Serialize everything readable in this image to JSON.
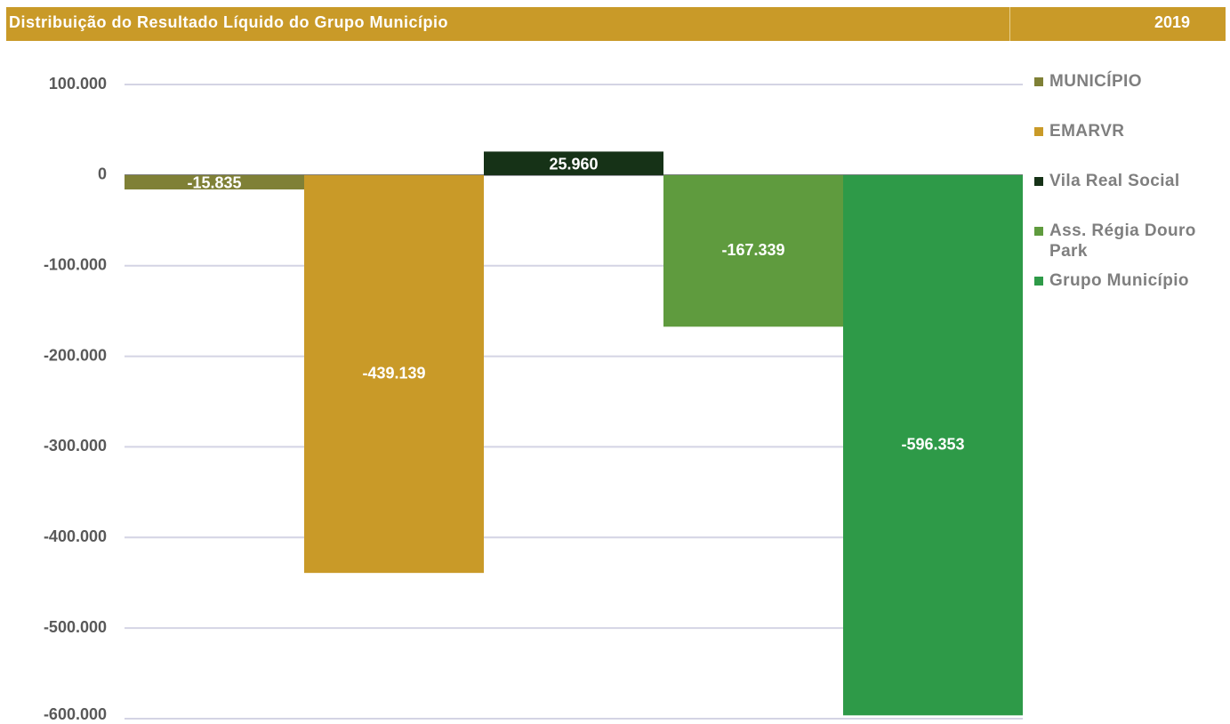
{
  "chart_data": {
    "type": "bar",
    "title": "Distribuição do Resultado Líquido do Grupo Município",
    "period": "2019",
    "series": [
      {
        "name": "MUNICÍPIO",
        "color": "#7f8036",
        "values": [
          -15835
        ],
        "value_labels": [
          "-15.835"
        ]
      },
      {
        "name": "EMARVR",
        "color": "#c99a28",
        "values": [
          -439139
        ],
        "value_labels": [
          "-439.139"
        ]
      },
      {
        "name": "Vila Real Social",
        "color": "#163217",
        "values": [
          25960
        ],
        "value_labels": [
          "25.960"
        ]
      },
      {
        "name": "Ass. Régia Douro Park",
        "color": "#5f9b3e",
        "values": [
          -167339
        ],
        "value_labels": [
          "-167.339"
        ]
      },
      {
        "name": "Grupo Município",
        "color": "#2e9a48",
        "values": [
          -596353
        ],
        "value_labels": [
          "-596.353"
        ]
      }
    ],
    "ylim": [
      -600000,
      100000
    ],
    "yticks": [
      {
        "value": 100000,
        "label": "100.000"
      },
      0,
      {
        "value": -100000,
        "label": "-100.000"
      },
      {
        "value": -200000,
        "label": "-200.000"
      },
      {
        "value": -300000,
        "label": "-300.000"
      },
      {
        "value": -400000,
        "label": "-400.000"
      },
      {
        "value": -500000,
        "label": "-500.000"
      },
      {
        "value": -600000,
        "label": "-600.000"
      }
    ],
    "grid": true,
    "legend": "right"
  }
}
